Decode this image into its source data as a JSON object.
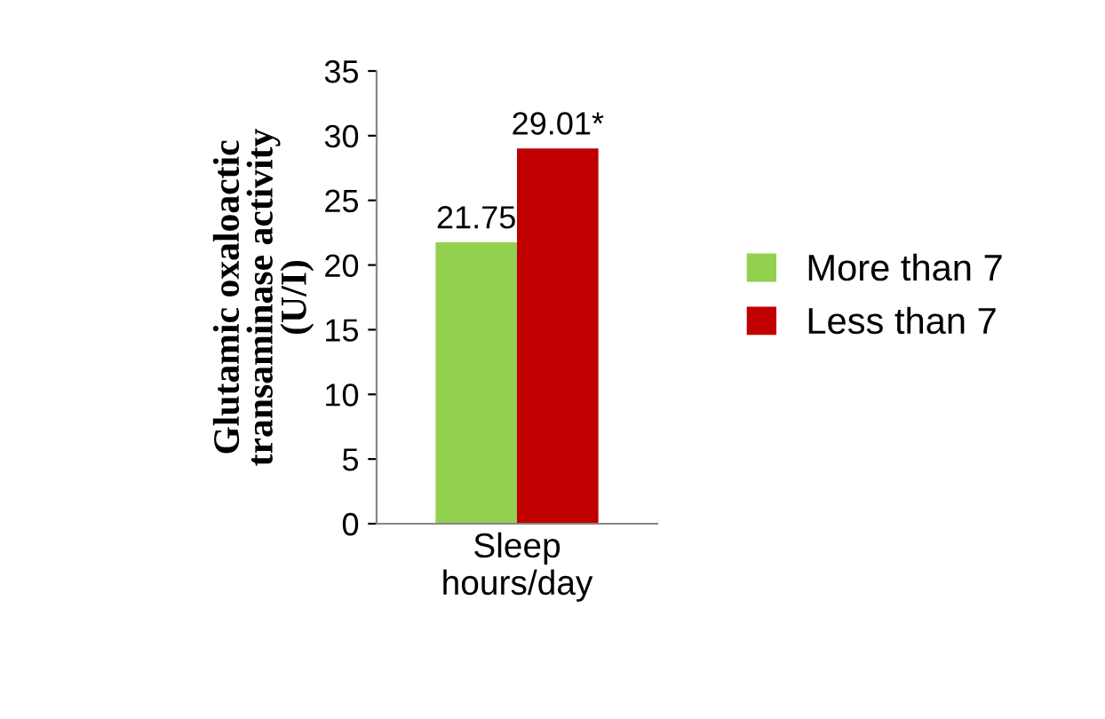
{
  "chart_data": {
    "type": "bar",
    "ylabel": "Glutamic oxaloactic\ntransaminase activity\n(U/I)",
    "categories": [
      "Sleep\nhours/day"
    ],
    "series": [
      {
        "name": "More than 7",
        "color": "#92d050",
        "values": [
          21.75
        ],
        "value_labels": [
          "21.75"
        ]
      },
      {
        "name": "Less than 7",
        "color": "#c00000",
        "values": [
          29.01
        ],
        "value_labels": [
          "29.01*"
        ]
      }
    ],
    "ylim": [
      0,
      35
    ],
    "yticks": [
      0,
      5,
      10,
      15,
      20,
      25,
      30,
      35
    ],
    "grid": false,
    "legend": "right"
  }
}
